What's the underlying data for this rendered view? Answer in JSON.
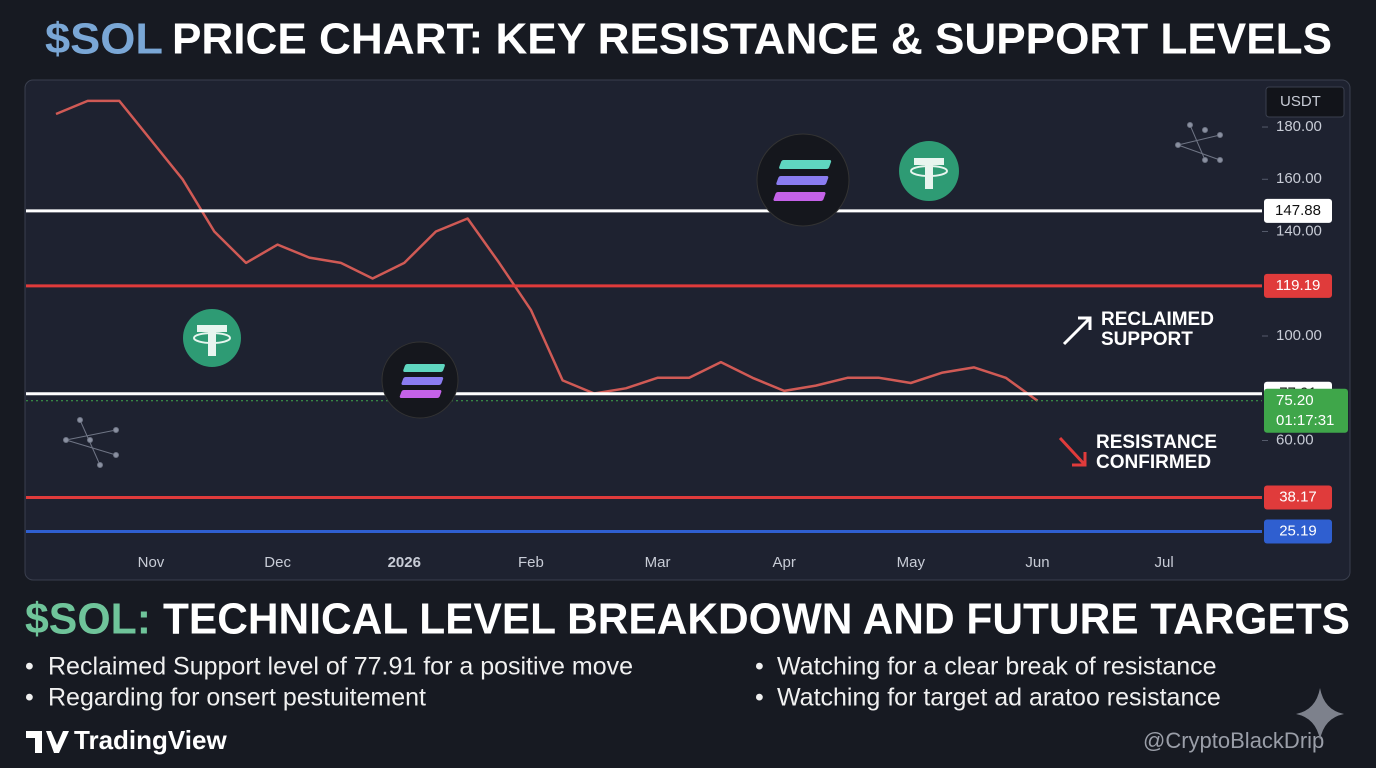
{
  "header": {
    "title_prefix": "$SOL",
    "title": "PRICE CHART: KEY RESISTANCE & SUPPORT LEVELS"
  },
  "chart_data": {
    "type": "line",
    "currency": "USDT",
    "categories": [
      null,
      null,
      null,
      "Nov",
      null,
      null,
      null,
      "Dec",
      null,
      null,
      null,
      "2026",
      null,
      null,
      null,
      "Feb",
      null,
      null,
      null,
      "Mar",
      null,
      null,
      null,
      "Apr",
      null,
      null,
      null,
      "May",
      null,
      null,
      null,
      "Jun",
      null,
      null,
      null,
      "Jul",
      null,
      null,
      null
    ],
    "series": [
      {
        "name": "SOLUSDT",
        "color": "#d05a55",
        "values": [
          185,
          190,
          190,
          175,
          160,
          140,
          128,
          135,
          130,
          128,
          122,
          128,
          140,
          145,
          128,
          110,
          83,
          78,
          80,
          84,
          84,
          90,
          84,
          79,
          81,
          84,
          84,
          82,
          86,
          88,
          84,
          75.2,
          null,
          null,
          null,
          null,
          null,
          null,
          null
        ]
      }
    ],
    "ylim": [
      20,
      198
    ],
    "yticks": [
      {
        "value": 180,
        "label": "180.00"
      },
      {
        "value": 160,
        "label": "160.00"
      },
      {
        "value": 140,
        "label": "140.00"
      },
      {
        "value": 100,
        "label": "100.00"
      },
      {
        "value": 60,
        "label": "60.00"
      }
    ],
    "levels": [
      {
        "value": 147.88,
        "color": "#ffffff"
      },
      {
        "value": 119.19,
        "color": "#e03b3b"
      },
      {
        "value": 77.91,
        "color": "#ffffff"
      },
      {
        "value": 38.17,
        "color": "#e03b3b"
      },
      {
        "value": 25.19,
        "color": "#2f5fd0"
      }
    ],
    "current_price": {
      "value": 75.2,
      "label": "75.20",
      "color": "#3fa64a"
    },
    "countdown": "01:17:31",
    "annotations": [
      [
        "RECLAIMED",
        "SUPPORT"
      ],
      [
        "RESISTANCE",
        "CONFIRMED"
      ]
    ]
  },
  "summary": {
    "title_prefix": "$SOL:",
    "title": "TECHNICAL LEVEL BREAKDOWN AND FUTURE TARGETS",
    "bullets_left": [
      "Reclaimed Support level of 77.91 for a positive move",
      "Regarding for onsert pestuitement"
    ],
    "bullets_right": [
      "Watching for a clear break of resistance",
      "Watching for target ad aratoo resistance"
    ]
  },
  "footer": {
    "brand": "TradingView",
    "watermark": "@CryptoBlackDrip"
  }
}
